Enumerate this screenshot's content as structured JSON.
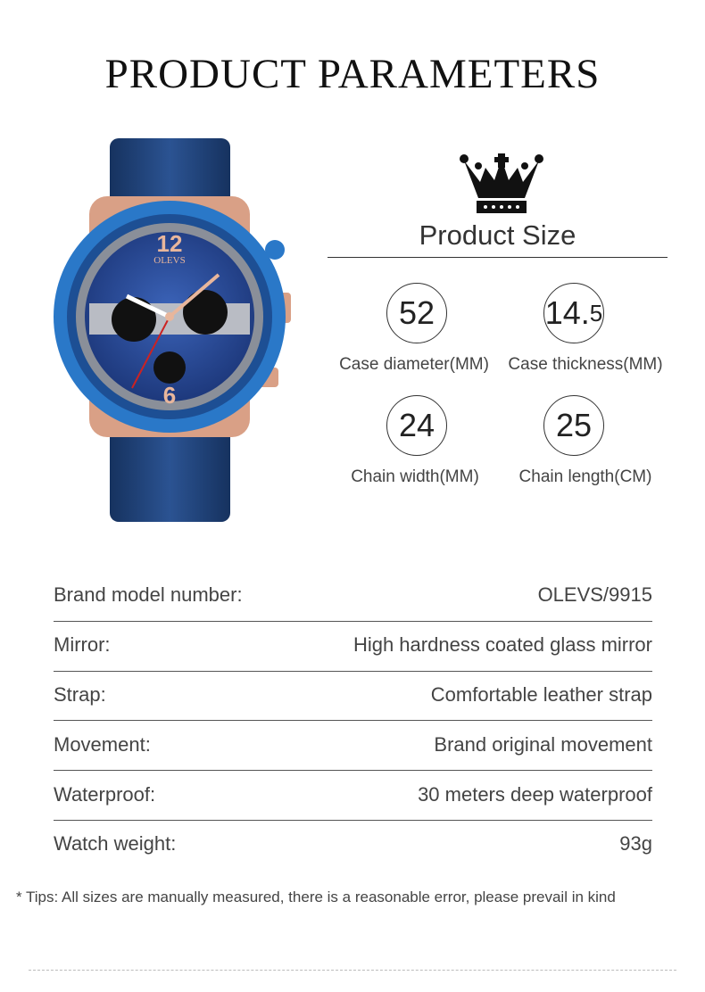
{
  "title": "PRODUCT PARAMETERS",
  "product_image": {
    "logo_text": "OLEVS",
    "strap_color": "#1f3f7a",
    "bezel_color": "#2a78c8",
    "case_color": "#d9a086"
  },
  "size": {
    "heading": "Product Size",
    "items": [
      {
        "value": "52",
        "label": "Case diameter(MM)"
      },
      {
        "value_main": "14.",
        "value_small": "5",
        "label": "Case thickness(MM)"
      },
      {
        "value": "24",
        "label": "Chain width(MM)"
      },
      {
        "value": "25",
        "label": "Chain length(CM)"
      }
    ]
  },
  "specs": [
    {
      "key": "Brand model number:",
      "value": "OLEVS/9915"
    },
    {
      "key": "Mirror:",
      "value": "High hardness coated glass mirror"
    },
    {
      "key": "Strap:",
      "value": "Comfortable leather strap"
    },
    {
      "key": "Movement:",
      "value": "Brand original movement"
    },
    {
      "key": "Waterproof:",
      "value": "30 meters deep waterproof"
    },
    {
      "key": "Watch weight:",
      "value": "93g"
    }
  ],
  "tip": "* Tips: All sizes are manually measured, there is a reasonable error, please prevail in kind"
}
